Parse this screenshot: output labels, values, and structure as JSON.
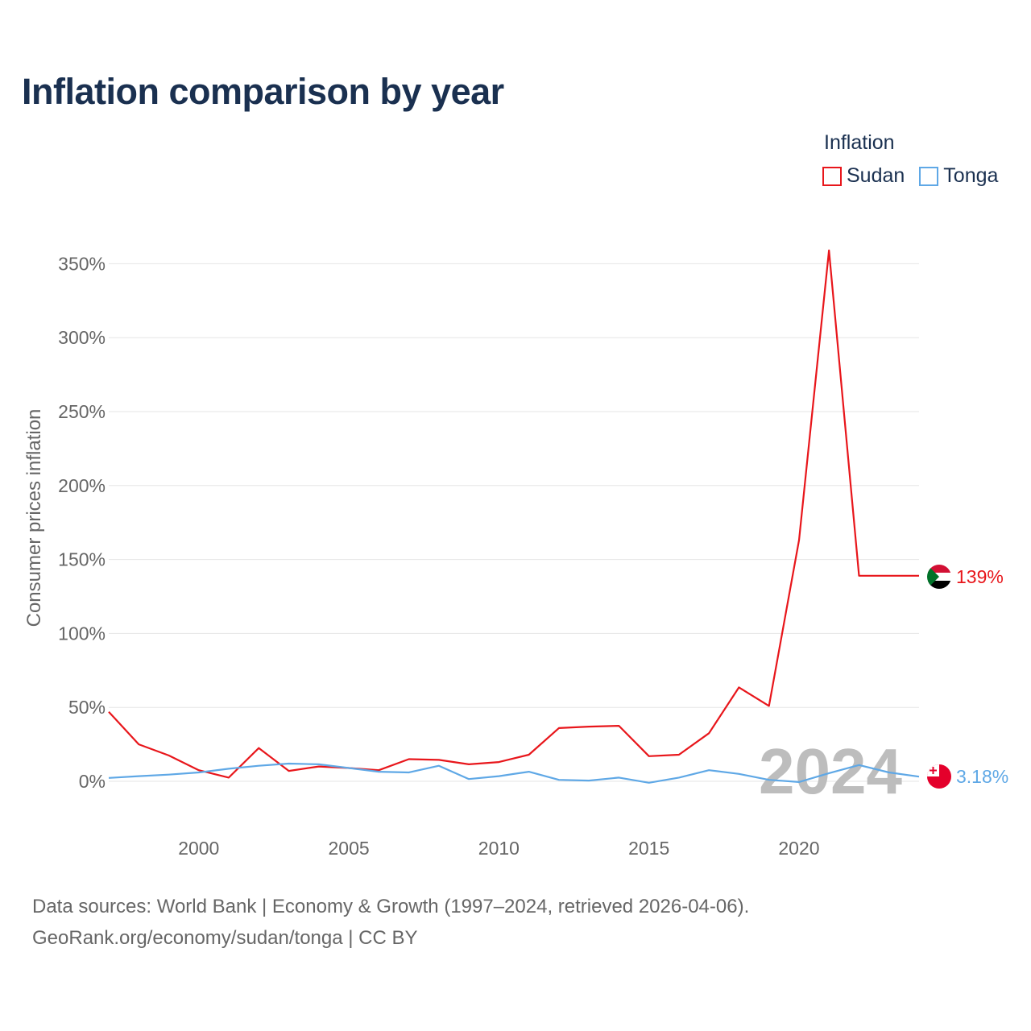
{
  "title": "Inflation comparison by year",
  "legend": {
    "title": "Inflation",
    "items": [
      {
        "name": "Sudan",
        "color": "#e8161b"
      },
      {
        "name": "Tonga",
        "color": "#5fa8e6"
      }
    ]
  },
  "source": {
    "line1": "Data sources: World Bank | Economy & Growth (1997–2024, retrieved 2026-04-06).",
    "line2": "GeoRank.org/economy/sudan/tonga | CC BY"
  },
  "chart_data": {
    "type": "line",
    "title": "Inflation comparison by year",
    "xlabel": "",
    "ylabel": "Consumer prices inflation",
    "x": [
      1997,
      1998,
      1999,
      2000,
      2001,
      2002,
      2003,
      2004,
      2005,
      2006,
      2007,
      2008,
      2009,
      2010,
      2011,
      2012,
      2013,
      2014,
      2015,
      2016,
      2017,
      2018,
      2019,
      2020,
      2021,
      2022,
      2023,
      2024
    ],
    "xlim": [
      1997,
      2024
    ],
    "ylim": [
      -30,
      370
    ],
    "x_ticks": [
      2000,
      2005,
      2010,
      2015,
      2020
    ],
    "x_tick_labels": [
      "2000",
      "2005",
      "2010",
      "2015",
      "2020"
    ],
    "y_ticks": [
      0,
      50,
      100,
      150,
      200,
      250,
      300,
      350
    ],
    "y_tick_labels": [
      "0%",
      "50%",
      "100%",
      "150%",
      "200%",
      "250%",
      "300%",
      "350%"
    ],
    "grid": true,
    "year_watermark": "2024",
    "series": [
      {
        "name": "Sudan",
        "color": "#e8161b",
        "end_label": "139%",
        "flag": "sudan",
        "values": [
          47,
          25,
          17.5,
          7.5,
          2.5,
          22.5,
          7,
          10,
          9,
          7.5,
          15,
          14.5,
          11.5,
          13,
          18,
          36,
          37,
          37.5,
          17,
          18,
          32.5,
          63.5,
          51,
          163,
          359,
          139,
          139,
          139
        ]
      },
      {
        "name": "Tonga",
        "color": "#5fa8e6",
        "end_label": "3.18%",
        "flag": "tonga",
        "values": [
          2.3,
          3.5,
          4.5,
          6,
          8.5,
          10.5,
          12,
          11.5,
          9,
          6.5,
          6,
          10.5,
          1.5,
          3.5,
          6.5,
          1,
          0.5,
          2.5,
          -1,
          2.5,
          7.5,
          5,
          1,
          -0.5,
          5.5,
          11,
          6,
          3.18
        ]
      }
    ]
  }
}
